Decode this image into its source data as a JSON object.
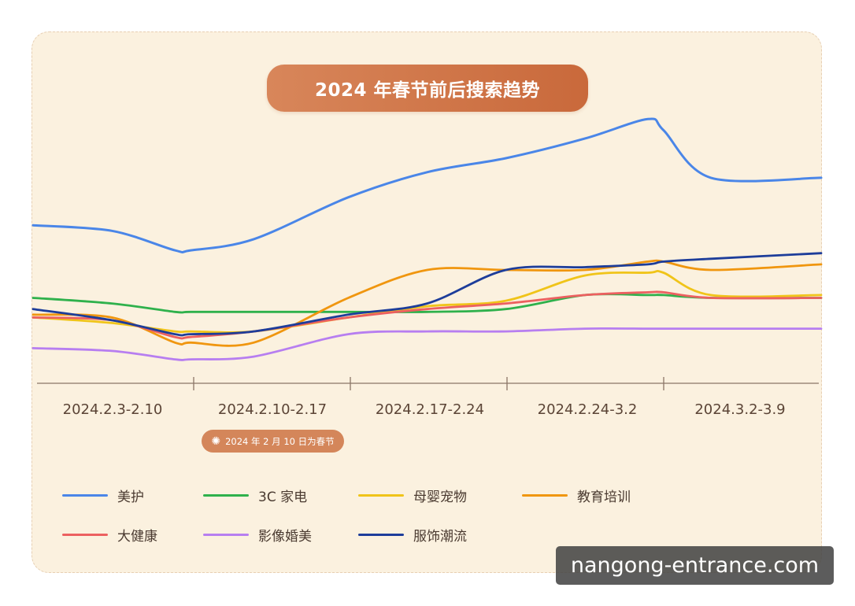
{
  "title": "2024 年春节前后搜索趋势",
  "note": {
    "text": "2024 年 2 月 10 日为春节",
    "icon": "firework-icon"
  },
  "watermark": "nangong-entrance.com",
  "chart_data": {
    "type": "line",
    "title": "2024 年春节前后搜索趋势",
    "categories": [
      "2024.2.3-2.10",
      "2024.2.10-2.17",
      "2024.2.17-2.24",
      "2024.2.24-3.2",
      "2024.3.2-3.9"
    ],
    "x": [
      0,
      0.5,
      0.9,
      1.0,
      1.4,
      2.0,
      2.5,
      3.0,
      3.5,
      3.9,
      4.0,
      4.3,
      5.0
    ],
    "ylim": [
      0,
      100
    ],
    "grid": false,
    "legend_position": "bottom",
    "series": [
      {
        "name": "美护",
        "color": "#4a86e8",
        "values": [
          56,
          54,
          47,
          47,
          51,
          66,
          75,
          80,
          87,
          94,
          90,
          73,
          73
        ]
      },
      {
        "name": "3C 家电",
        "color": "#2fb14c",
        "values": [
          30,
          28,
          25,
          25,
          25,
          25,
          25,
          26,
          31,
          31,
          31,
          30,
          30
        ]
      },
      {
        "name": "母婴宠物",
        "color": "#f0c419",
        "values": [
          23,
          21,
          18,
          18,
          18,
          23,
          27,
          29,
          38,
          39,
          39,
          31,
          31
        ]
      },
      {
        "name": "教育培训",
        "color": "#f0960f",
        "values": [
          24,
          23,
          14,
          14,
          14,
          30,
          40,
          40,
          40,
          43,
          43,
          40,
          42
        ]
      },
      {
        "name": "大健康",
        "color": "#ec6060",
        "values": [
          23,
          22,
          16,
          16,
          18,
          23,
          26,
          28,
          31,
          32,
          32,
          30,
          30
        ]
      },
      {
        "name": "影像婚美",
        "color": "#b77ef0",
        "values": [
          12,
          11,
          8,
          8,
          9,
          17,
          18,
          18,
          19,
          19,
          19,
          19,
          19
        ]
      },
      {
        "name": "服饰潮流",
        "color": "#1d3d9a",
        "values": [
          26,
          22,
          17,
          17,
          18,
          24,
          28,
          40,
          41,
          42,
          43,
          44,
          46
        ]
      }
    ]
  }
}
